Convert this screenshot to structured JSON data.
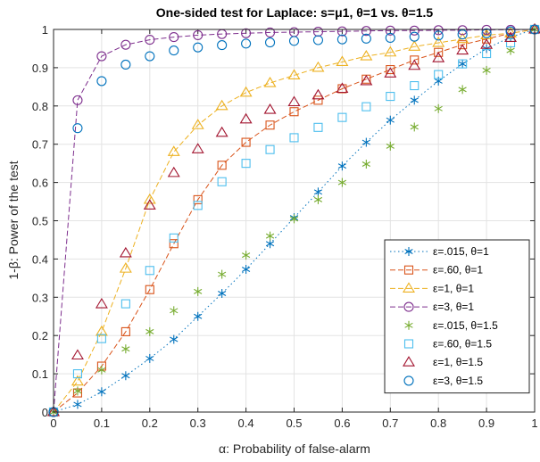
{
  "chart_data": {
    "type": "line",
    "title": "One-sided test for Laplace: s=μ1, θ=1 vs. θ=1.5",
    "xlabel": "α: Probability of false-alarm",
    "ylabel": "1-β: Power of the test",
    "xlim": [
      0,
      1
    ],
    "ylim": [
      0,
      1
    ],
    "xticks": [
      "0",
      "0.1",
      "0.2",
      "0.3",
      "0.4",
      "0.5",
      "0.6",
      "0.7",
      "0.8",
      "0.9",
      "1"
    ],
    "yticks": [
      "0",
      "0.1",
      "0.2",
      "0.3",
      "0.4",
      "0.5",
      "0.6",
      "0.7",
      "0.8",
      "0.9",
      "1"
    ],
    "grid": true,
    "legend_position": "bottom-right",
    "x": [
      0,
      0.05,
      0.1,
      0.15,
      0.2,
      0.25,
      0.3,
      0.35,
      0.4,
      0.45,
      0.5,
      0.55,
      0.6,
      0.65,
      0.7,
      0.75,
      0.8,
      0.85,
      0.9,
      0.95,
      1
    ],
    "series": [
      {
        "name": "ε=.015, θ=1",
        "color": "#0072BD",
        "marker": "asterisk",
        "line": "dotted",
        "values": [
          0,
          0.02,
          0.053,
          0.095,
          0.14,
          0.19,
          0.25,
          0.31,
          0.373,
          0.44,
          0.508,
          0.575,
          0.643,
          0.705,
          0.763,
          0.815,
          0.865,
          0.91,
          0.95,
          0.98,
          1
        ]
      },
      {
        "name": "ε=.60, θ=1",
        "color": "#D95319",
        "marker": "square",
        "line": "dashed",
        "values": [
          0,
          0.05,
          0.12,
          0.21,
          0.32,
          0.44,
          0.555,
          0.645,
          0.705,
          0.75,
          0.785,
          0.815,
          0.845,
          0.87,
          0.895,
          0.92,
          0.94,
          0.96,
          0.975,
          0.99,
          1
        ]
      },
      {
        "name": "ε=1, θ=1",
        "color": "#EDB120",
        "marker": "triangle",
        "line": "dashed",
        "values": [
          0,
          0.08,
          0.21,
          0.375,
          0.555,
          0.68,
          0.75,
          0.8,
          0.835,
          0.86,
          0.88,
          0.9,
          0.915,
          0.93,
          0.94,
          0.955,
          0.965,
          0.975,
          0.985,
          0.99,
          1
        ]
      },
      {
        "name": "ε=3, θ=1",
        "color": "#7E2F8E",
        "marker": "circle",
        "line": "dashed",
        "values": [
          0,
          0.815,
          0.93,
          0.96,
          0.973,
          0.98,
          0.985,
          0.988,
          0.99,
          0.992,
          0.993,
          0.994,
          0.995,
          0.996,
          0.997,
          0.997,
          0.998,
          0.998,
          0.999,
          0.999,
          1
        ]
      },
      {
        "name": "ε=.015, θ=1.5",
        "color": "#77AC30",
        "marker": "asterisk",
        "line": "none",
        "values": [
          0,
          0.055,
          0.11,
          0.165,
          0.21,
          0.265,
          0.315,
          0.36,
          0.41,
          0.46,
          0.505,
          0.555,
          0.6,
          0.648,
          0.695,
          0.745,
          0.793,
          0.843,
          0.893,
          0.945,
          1
        ]
      },
      {
        "name": "ε=.60, θ=1.5",
        "color": "#4DBEEE",
        "marker": "square",
        "line": "none",
        "values": [
          0,
          0.1,
          0.192,
          0.283,
          0.37,
          0.455,
          0.54,
          0.602,
          0.65,
          0.686,
          0.717,
          0.744,
          0.77,
          0.798,
          0.825,
          0.853,
          0.882,
          0.91,
          0.937,
          0.965,
          1
        ]
      },
      {
        "name": "ε=1, θ=1.5",
        "color": "#A2142F",
        "marker": "triangle",
        "line": "none",
        "values": [
          0,
          0.148,
          0.282,
          0.415,
          0.54,
          0.625,
          0.687,
          0.73,
          0.765,
          0.79,
          0.81,
          0.828,
          0.845,
          0.865,
          0.885,
          0.905,
          0.925,
          0.945,
          0.96,
          0.978,
          1
        ]
      },
      {
        "name": "ε=3, θ=1.5",
        "color": "#0072BD",
        "marker": "circle",
        "line": "none",
        "values": [
          0,
          0.742,
          0.865,
          0.908,
          0.93,
          0.945,
          0.953,
          0.959,
          0.963,
          0.966,
          0.97,
          0.972,
          0.974,
          0.976,
          0.978,
          0.981,
          0.984,
          0.987,
          0.99,
          0.995,
          1
        ]
      }
    ]
  }
}
